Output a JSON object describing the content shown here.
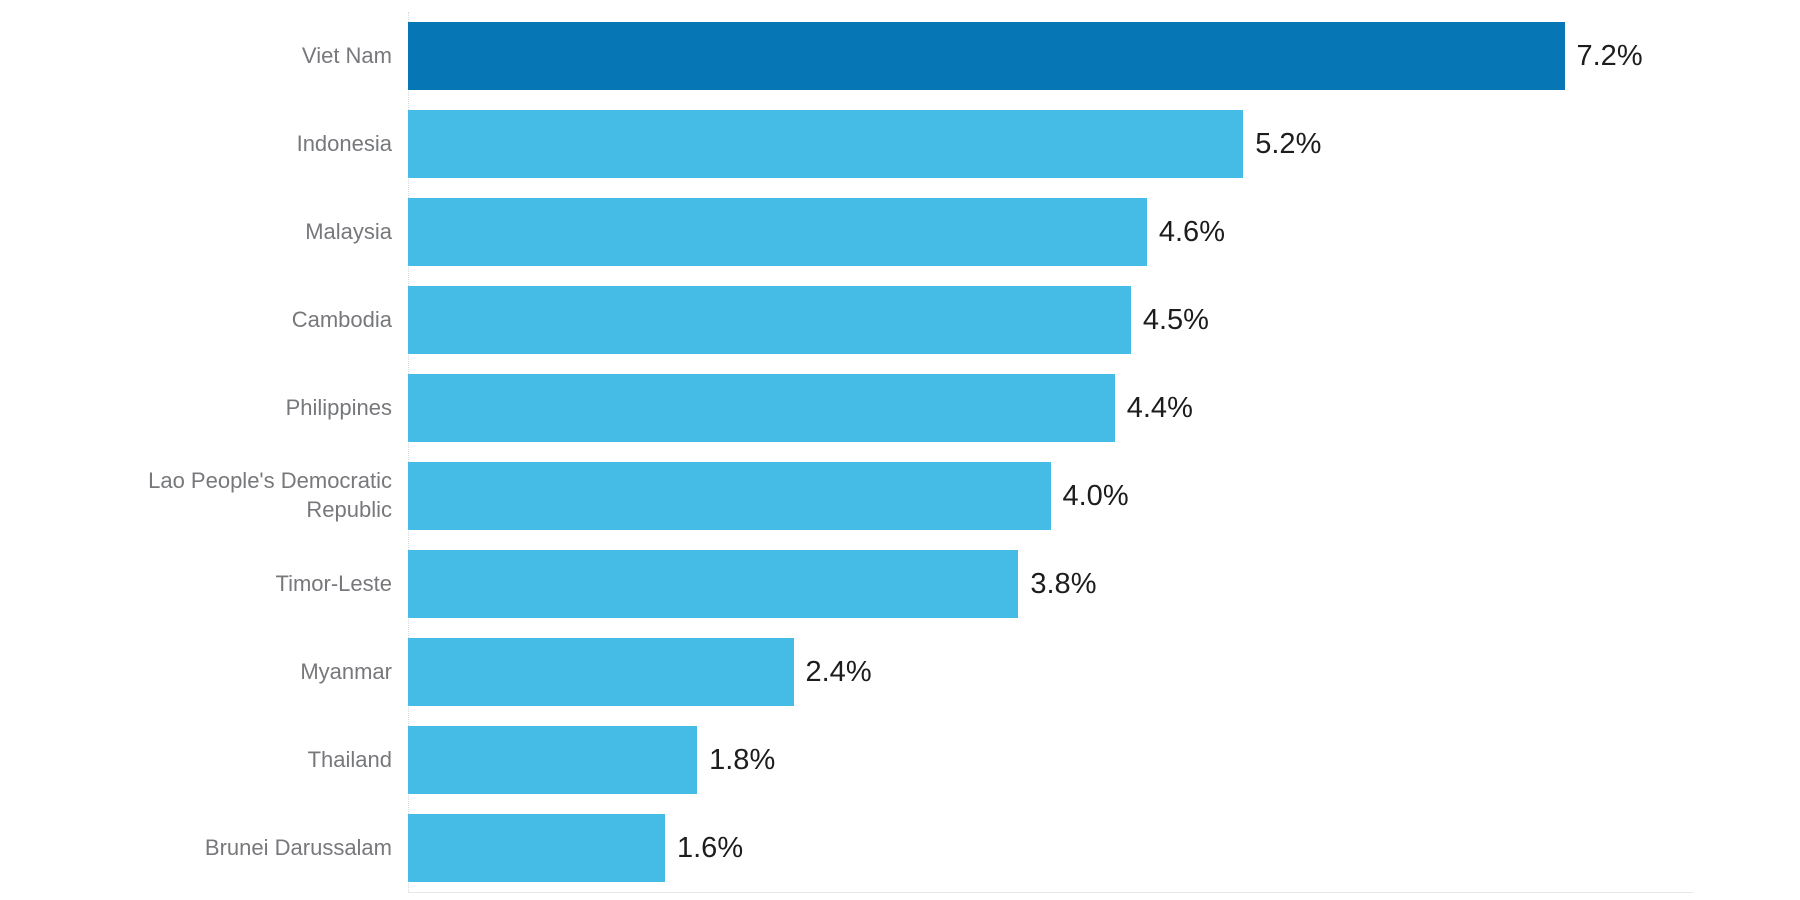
{
  "chart_data": {
    "type": "bar",
    "orientation": "horizontal",
    "categories": [
      "Viet Nam",
      "Indonesia",
      "Malaysia",
      "Cambodia",
      "Philippines",
      "Lao People's Democratic Republic",
      "Timor-Leste",
      "Myanmar",
      "Thailand",
      "Brunei Darussalam"
    ],
    "values": [
      7.2,
      5.2,
      4.6,
      4.5,
      4.4,
      4.0,
      3.8,
      2.4,
      1.8,
      1.6
    ],
    "value_labels": [
      "7.2%",
      "5.2%",
      "4.6%",
      "4.5%",
      "4.4%",
      "4.0%",
      "3.8%",
      "2.4%",
      "1.8%",
      "1.6%"
    ],
    "xlabel": "",
    "ylabel": "",
    "xlim": [
      0,
      8
    ],
    "grid": "off",
    "legend": "none",
    "axis_ticks_visible": false,
    "highlight_index": 0,
    "colors": {
      "highlight_bar": "#0677b4",
      "bar": "#45bce5",
      "category_label": "#77787b",
      "value_label": "#1d1d1f",
      "y_axis_dotted_line": "#d8d8d8",
      "x_axis_line": "#e9e9e9",
      "background": "#ffffff"
    }
  }
}
